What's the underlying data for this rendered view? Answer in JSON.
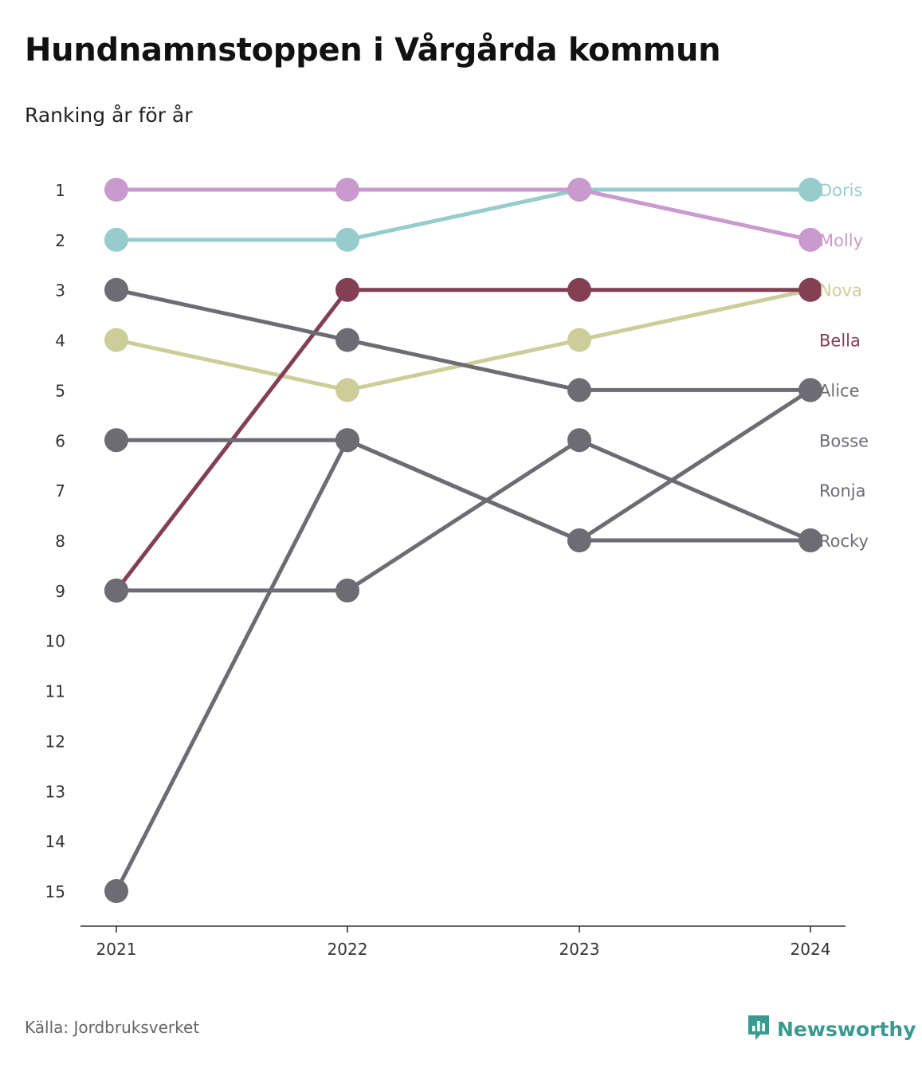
{
  "title": "Hundnamnstoppen i Vårgårda kommun",
  "subtitle": "Ranking år för år",
  "source": "Källa: Jordbruksverket",
  "brand": {
    "name": "Newsworthy",
    "color": "#3a9a90",
    "icon": "newsworthy-logo-icon"
  },
  "chart_data": {
    "type": "line",
    "chart_kind": "bump",
    "categories": [
      "2021",
      "2022",
      "2023",
      "2024"
    ],
    "y_ticks": [
      1,
      2,
      3,
      4,
      5,
      6,
      7,
      8,
      9,
      10,
      11,
      12,
      13,
      14,
      15
    ],
    "ylim": [
      1,
      15
    ],
    "y_inverted": true,
    "grid": false,
    "legend": "direct labels at right end",
    "series": [
      {
        "name": "Doris",
        "color": "#96cccb",
        "values": [
          2,
          2,
          1,
          1
        ]
      },
      {
        "name": "Molly",
        "color": "#c99acd",
        "values": [
          1,
          1,
          1,
          2
        ]
      },
      {
        "name": "Nova",
        "color": "#cdcd9a",
        "values": [
          4,
          5,
          4,
          3
        ]
      },
      {
        "name": "Bella",
        "color": "#833f54",
        "values": [
          9,
          3,
          3,
          3
        ]
      },
      {
        "name": "Alice",
        "color": "#6d6c73",
        "values": [
          3,
          4,
          5,
          5
        ]
      },
      {
        "name": "Bosse",
        "color": "#6d6c73",
        "values": [
          6,
          6,
          8,
          8
        ]
      },
      {
        "name": "Ronja",
        "color": "#6d6c73",
        "values": [
          15,
          6,
          8,
          5
        ]
      },
      {
        "name": "Rocky",
        "color": "#6d6c73",
        "values": [
          9,
          9,
          6,
          8
        ]
      }
    ],
    "end_labels": [
      {
        "text": "Doris",
        "rank": 1,
        "color": "#96cccb"
      },
      {
        "text": "Molly",
        "rank": 2,
        "color": "#c99acd"
      },
      {
        "text": "Nova",
        "rank": 3,
        "color": "#cdcd9a"
      },
      {
        "text": "Bella",
        "rank": 4,
        "color": "#833f54"
      },
      {
        "text": "Alice",
        "rank": 5,
        "color": "#6d6c73"
      },
      {
        "text": "Bosse",
        "rank": 6,
        "color": "#6d6c73"
      },
      {
        "text": "Ronja",
        "rank": 7,
        "color": "#6d6c73"
      },
      {
        "text": "Rocky",
        "rank": 8,
        "color": "#6d6c73"
      }
    ]
  }
}
